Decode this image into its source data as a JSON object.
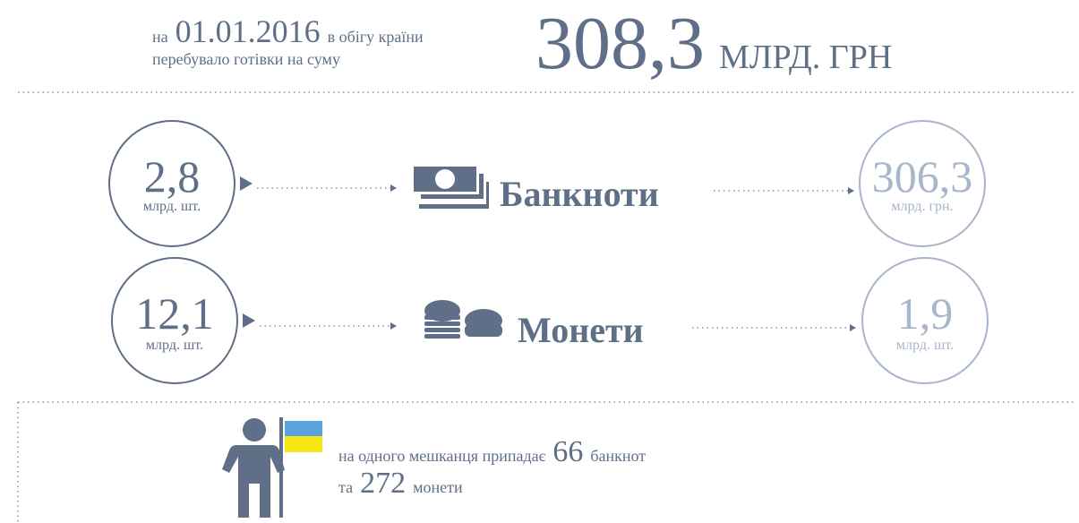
{
  "header": {
    "prefix": "на",
    "date": "01.01.2016",
    "line1": "в обігу країни",
    "line2": "перебувало готівки на суму",
    "amount": "308,3",
    "unit": "МЛРД. ГРН"
  },
  "rows": [
    {
      "count": "2,8",
      "count_unit": "млрд. шт.",
      "label": "Банкноти",
      "value": "306,3",
      "value_unit": "млрд. грн."
    },
    {
      "count": "12,1",
      "count_unit": "млрд. шт.",
      "label": "Монети",
      "value": "1,9",
      "value_unit": "млрд. шт."
    }
  ],
  "footer": {
    "text1": "на одного мешканця припадає",
    "banknotes": "66",
    "text2": "банкнот",
    "text3": "та",
    "coins": "272",
    "text4": "монети"
  }
}
